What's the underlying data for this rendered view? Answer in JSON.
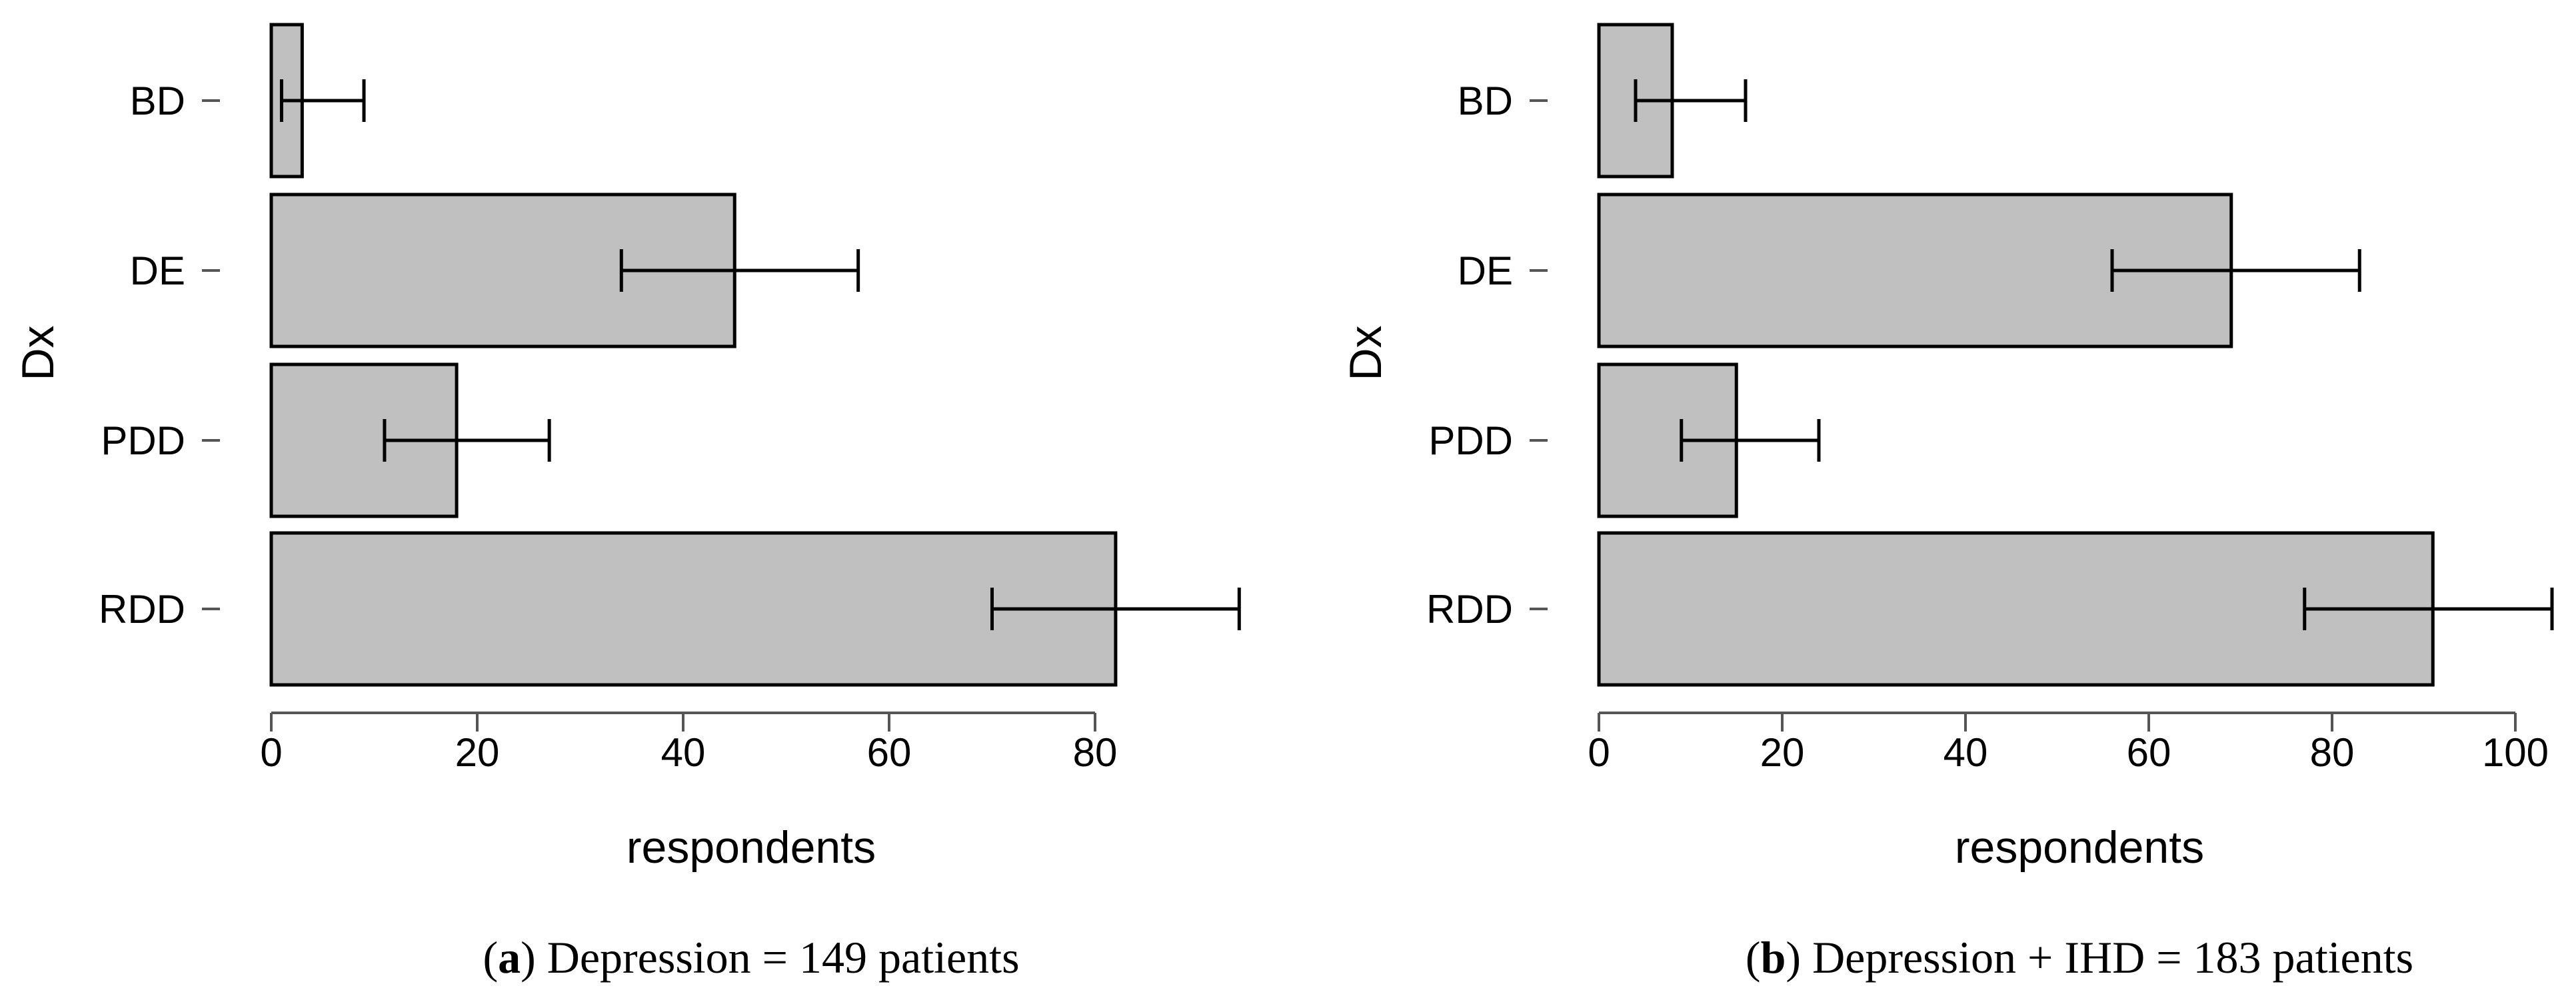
{
  "chart_data": [
    {
      "panel": "a",
      "type": "bar",
      "orientation": "horizontal",
      "categories": [
        "BD",
        "DE",
        "PDD",
        "RDD"
      ],
      "values": [
        3,
        45,
        18,
        82
      ],
      "error_low": [
        1,
        34,
        11,
        70
      ],
      "error_high": [
        9,
        57,
        27,
        94
      ],
      "xlim": [
        0,
        82
      ],
      "xticks": [
        "0",
        "20",
        "40",
        "60",
        "80"
      ],
      "xlabel": "respondents",
      "ylabel": "Dx",
      "caption_letter": "a",
      "caption_text": " Depression = 149 patients",
      "bar_color": "#c0c0c0"
    },
    {
      "panel": "b",
      "type": "bar",
      "orientation": "horizontal",
      "categories": [
        "BD",
        "DE",
        "PDD",
        "RDD"
      ],
      "values": [
        8,
        69,
        15,
        91
      ],
      "error_low": [
        4,
        56,
        9,
        77
      ],
      "error_high": [
        16,
        83,
        24,
        104
      ],
      "xlim": [
        0,
        100
      ],
      "xticks": [
        "0",
        "20",
        "40",
        "60",
        "80",
        "100"
      ],
      "xlabel": "respondents",
      "ylabel": "Dx",
      "caption_letter": "b",
      "caption_text": " Depression + IHD = 183 patients",
      "bar_color": "#c0c0c0"
    }
  ]
}
